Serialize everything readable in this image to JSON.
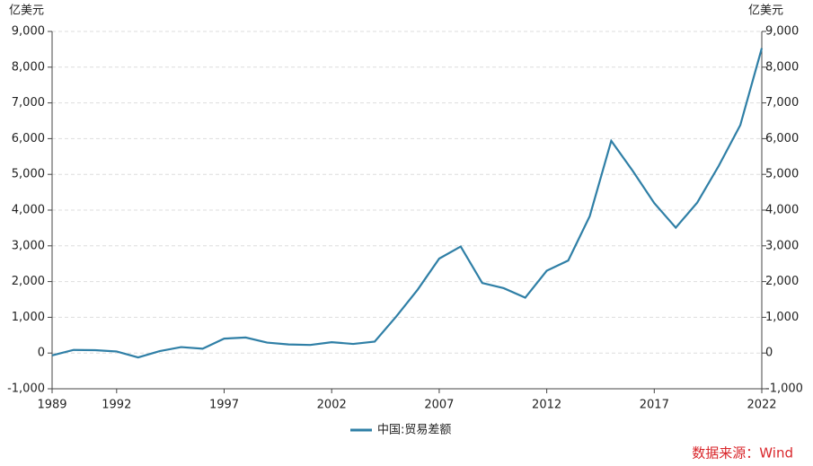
{
  "chart_data": {
    "type": "line",
    "y_unit": "亿美元",
    "y2_unit": "亿美元",
    "source": "数据来源：Wind",
    "x": [
      1989,
      1990,
      1991,
      1992,
      1993,
      1994,
      1995,
      1996,
      1997,
      1998,
      1999,
      2000,
      2001,
      2002,
      2003,
      2004,
      2005,
      2006,
      2007,
      2008,
      2009,
      2010,
      2011,
      2012,
      2013,
      2014,
      2015,
      2016,
      2017,
      2018,
      2019,
      2020,
      2021,
      2022
    ],
    "xlim": [
      1989,
      2022
    ],
    "xticks": [
      1989,
      1992,
      1997,
      2002,
      2007,
      2012,
      2017,
      2022
    ],
    "series": [
      {
        "name": "中国:贸易差额",
        "color": "#2f7fa6",
        "values": [
          -66,
          87,
          81,
          44,
          -122,
          54,
          167,
          122,
          404,
          435,
          292,
          241,
          226,
          304,
          255,
          321,
          1020,
          1775,
          2643,
          2981,
          1961,
          1815,
          1549,
          2303,
          2590,
          3831,
          5939,
          5097,
          4196,
          3509,
          4211,
          5240,
          6377,
          8530
        ]
      }
    ],
    "ylim": [
      -1000,
      9000
    ],
    "yticks": [
      {
        "value": -1000,
        "label": "-1,000"
      },
      0,
      {
        "value": 1000,
        "label": "1,000"
      },
      {
        "value": 2000,
        "label": "2,000"
      },
      {
        "value": 3000,
        "label": "3,000"
      },
      {
        "value": 4000,
        "label": "4,000"
      },
      {
        "value": 5000,
        "label": "5,000"
      },
      {
        "value": 6000,
        "label": "6,000"
      },
      {
        "value": 7000,
        "label": "7,000"
      },
      {
        "value": 8000,
        "label": "8,000"
      },
      {
        "value": 9000,
        "label": "9,000"
      }
    ],
    "y2lim": [
      -1000,
      9000
    ],
    "y2ticks": [
      {
        "value": -1000,
        "label": "-1,000"
      },
      0,
      {
        "value": 1000,
        "label": "1,000"
      },
      {
        "value": 2000,
        "label": "2,000"
      },
      {
        "value": 3000,
        "label": "3,000"
      },
      {
        "value": 4000,
        "label": "4,000"
      },
      {
        "value": 5000,
        "label": "5,000"
      },
      {
        "value": 6000,
        "label": "6,000"
      },
      {
        "value": 7000,
        "label": "7,000"
      },
      {
        "value": 8000,
        "label": "8,000"
      },
      {
        "value": 9000,
        "label": "9,000"
      }
    ],
    "grid": true
  }
}
